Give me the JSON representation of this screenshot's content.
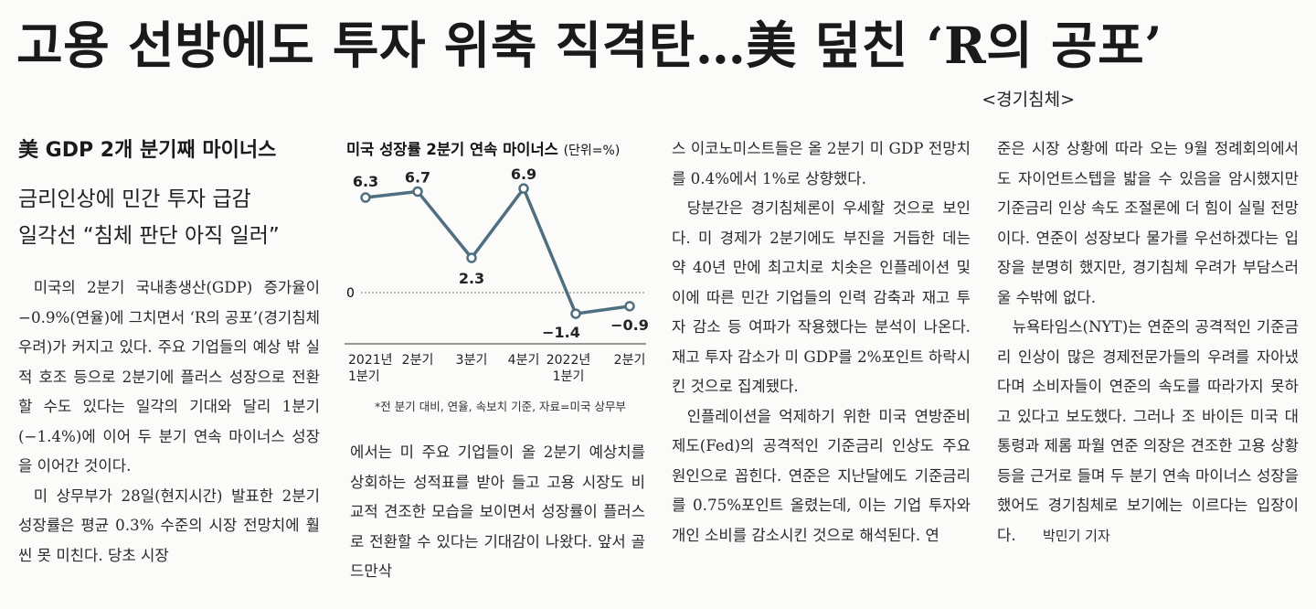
{
  "headline": "고용 선방에도 투자 위축 직격탄…美 덮친 ‘R의 공포’",
  "section_tag": "<경기침체>",
  "subheads": [
    "美 GDP 2개 분기째 마이너스",
    "금리인상에 민간 투자 급감",
    "일각선 “침체 판단 아직 일러”"
  ],
  "chart_data": {
    "type": "line",
    "title": "미국 성장률 2분기 연속 마이너스",
    "unit": "(단위=%)",
    "categories": [
      "2021년 1분기",
      "2분기",
      "3분기",
      "4분기",
      "2022년 1분기",
      "2분기"
    ],
    "values": [
      6.3,
      6.7,
      2.3,
      6.9,
      -1.4,
      -0.9
    ],
    "value_labels": [
      "6.3",
      "6.7",
      "2.3",
      "6.9",
      "−1.4",
      "−0.9"
    ],
    "zero_label": "0",
    "note": "*전 분기 대비, 연율, 속보치 기준, 자료=미국 상무부",
    "line_color": "#4f6f80"
  },
  "body": {
    "col1": [
      "미국의 2분기 국내총생산(GDP) 증가율이 −0.9%(연율)에 그치면서 ‘R의 공포’(경기침체 우려)가 커지고 있다. 주요 기업들의 예상 밖 실적 호조 등으로 2분기에 플러스 성장으로 전환할 수도 있다는 일각의 기대와 달리 1분기(−1.4%)에 이어 두 분기 연속 마이너스 성장을 이어간 것이다.",
      "미 상무부가 28일(현지시간) 발표한 2분기 성장률은 평균 0.3% 수준의 시장 전망치에 훨씬 못 미친다. 당초 시장"
    ],
    "col2": [
      "에서는 미 주요 기업들이 올 2분기 예상치를 상회하는 성적표를 받아 들고 고용 시장도 비교적 견조한 모습을 보이면서 성장률이 플러스로 전환할 수 있다는 기대감이 나왔다. 앞서 골드만삭"
    ],
    "col3": [
      "스 이코노미스트들은 올 2분기 미 GDP 전망치를 0.4%에서 1%로 상향했다.",
      "당분간은 경기침체론이 우세할 것으로 보인다. 미 경제가 2분기에도 부진을 거듭한 데는 약 40년 만에 최고치로 치솟은 인플레이션 및 이에 따른 민간 기업들의 인력 감축과 재고 투자 감소 등 여파가 작용했다는 분석이 나온다. 재고 투자 감소가 미 GDP를 2%포인트 하락시킨 것으로 집계됐다.",
      "인플레이션을 억제하기 위한 미국 연방준비제도(Fed)의 공격적인 기준금리 인상도 주요 원인으로 꼽힌다. 연준은 지난달에도 기준금리를 0.75%포인트 올렸는데, 이는 기업 투자와 개인 소비를 감소시킨 것으로 해석된다. 연"
    ],
    "col4": [
      "준은 시장 상황에 따라 오는 9월 정례회의에서도 자이언트스텝을 밟을 수 있음을 암시했지만 기준금리 인상 속도 조절론에 더 힘이 실릴 전망이다. 연준이 성장보다 물가를 우선하겠다는 입장을 분명히 했지만, 경기침체 우려가 부담스러울 수밖에 없다.",
      "뉴욕타임스(NYT)는 연준의 공격적인 기준금리 인상이 많은 경제전문가들의 우려를 자아냈다며 소비자들이 연준의 속도를 따라가지 못하고 있다고 보도했다. 그러나 조 바이든 미국 대통령과 제롬 파월 연준 의장은 견조한 고용 상황 등을 근거로 들며 두 분기 연속 마이너스 성장을 했어도 경기침체로 보기에는 이르다는 입장이다."
    ],
    "byline": "박민기 기자"
  }
}
